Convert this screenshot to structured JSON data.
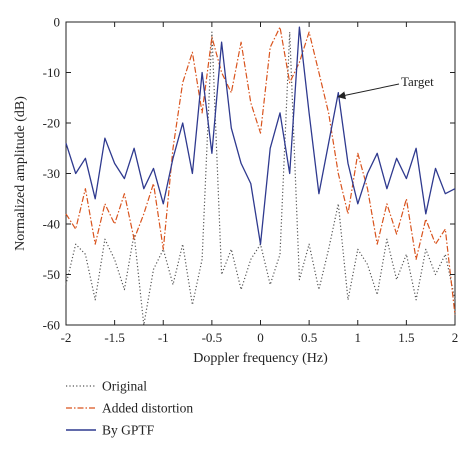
{
  "chart_data": {
    "type": "line",
    "xlabel": "Doppler frequency (Hz)",
    "ylabel": "Normalized amplitude (dB)",
    "xlim": [
      -2,
      2
    ],
    "ylim": [
      -60,
      0
    ],
    "xticks": [
      -2,
      -1.5,
      -1,
      -0.5,
      0,
      0.5,
      1,
      1.5,
      2
    ],
    "xtick_labels": [
      "-2",
      "-1.5",
      "-1",
      "-0.5",
      "0",
      "0.5",
      "1",
      "1.5",
      "2"
    ],
    "yticks": [
      0,
      -10,
      -20,
      -30,
      -40,
      -50,
      -60
    ],
    "ytick_labels": [
      "0",
      "-10",
      "-20",
      "-30",
      "-40",
      "-50",
      "-60"
    ],
    "grid": false,
    "legend_position": "below-left",
    "annotation": {
      "text": "Target",
      "points_to": {
        "x": 0.78,
        "y": -15
      }
    },
    "series": [
      {
        "name": "Original",
        "style": "dotted",
        "color": "#555555",
        "x": [
          -2.0,
          -1.9,
          -1.8,
          -1.7,
          -1.6,
          -1.5,
          -1.4,
          -1.3,
          -1.2,
          -1.1,
          -1.0,
          -0.9,
          -0.8,
          -0.7,
          -0.6,
          -0.5,
          -0.4,
          -0.3,
          -0.2,
          -0.1,
          0.0,
          0.1,
          0.2,
          0.3,
          0.4,
          0.5,
          0.6,
          0.7,
          0.8,
          0.9,
          1.0,
          1.1,
          1.2,
          1.3,
          1.4,
          1.5,
          1.6,
          1.7,
          1.8,
          1.9,
          2.0
        ],
        "y": [
          -52,
          -44,
          -46,
          -55,
          -43,
          -47,
          -53,
          -42,
          -60,
          -49,
          -45,
          -52,
          -44,
          -56,
          -47,
          -2,
          -50,
          -45,
          -53,
          -47,
          -44,
          -52,
          -46,
          -2,
          -51,
          -44,
          -53,
          -45,
          -36,
          -55,
          -45,
          -48,
          -54,
          -43,
          -51,
          -46,
          -55,
          -45,
          -50,
          -46,
          -55
        ]
      },
      {
        "name": "Added distortion",
        "style": "dashdot",
        "color": "#d9541e",
        "x": [
          -2.0,
          -1.9,
          -1.8,
          -1.7,
          -1.6,
          -1.5,
          -1.4,
          -1.3,
          -1.2,
          -1.1,
          -1.0,
          -0.9,
          -0.8,
          -0.7,
          -0.6,
          -0.5,
          -0.4,
          -0.3,
          -0.2,
          -0.1,
          0.0,
          0.1,
          0.2,
          0.3,
          0.4,
          0.5,
          0.6,
          0.7,
          0.8,
          0.9,
          1.0,
          1.1,
          1.2,
          1.3,
          1.4,
          1.5,
          1.6,
          1.7,
          1.8,
          1.9,
          2.0
        ],
        "y": [
          -38,
          -41,
          -33,
          -44,
          -36,
          -40,
          -34,
          -43,
          -38,
          -32,
          -45,
          -25,
          -12,
          -6,
          -18,
          -3,
          -10,
          -14,
          -4,
          -16,
          -22,
          -5,
          -1,
          -12,
          -8,
          -2,
          -10,
          -18,
          -30,
          -38,
          -26,
          -33,
          -44,
          -36,
          -42,
          -35,
          -47,
          -39,
          -44,
          -41,
          -58
        ]
      },
      {
        "name": "By GPTF",
        "style": "solid",
        "color": "#2f3a8f",
        "x": [
          -2.0,
          -1.9,
          -1.8,
          -1.7,
          -1.6,
          -1.5,
          -1.4,
          -1.3,
          -1.2,
          -1.1,
          -1.0,
          -0.9,
          -0.8,
          -0.7,
          -0.6,
          -0.5,
          -0.4,
          -0.3,
          -0.2,
          -0.1,
          0.0,
          0.1,
          0.2,
          0.3,
          0.4,
          0.5,
          0.6,
          0.7,
          0.8,
          0.9,
          1.0,
          1.1,
          1.2,
          1.3,
          1.4,
          1.5,
          1.6,
          1.7,
          1.8,
          1.9,
          2.0
        ],
        "y": [
          -24,
          -30,
          -27,
          -35,
          -23,
          -28,
          -31,
          -25,
          -33,
          -29,
          -36,
          -27,
          -20,
          -30,
          -10,
          -26,
          -4,
          -21,
          -28,
          -32,
          -44,
          -25,
          -18,
          -30,
          -1,
          -18,
          -34,
          -24,
          -14,
          -28,
          -36,
          -30,
          -26,
          -33,
          -27,
          -31,
          -25,
          -38,
          -29,
          -34,
          -33
        ]
      }
    ]
  }
}
